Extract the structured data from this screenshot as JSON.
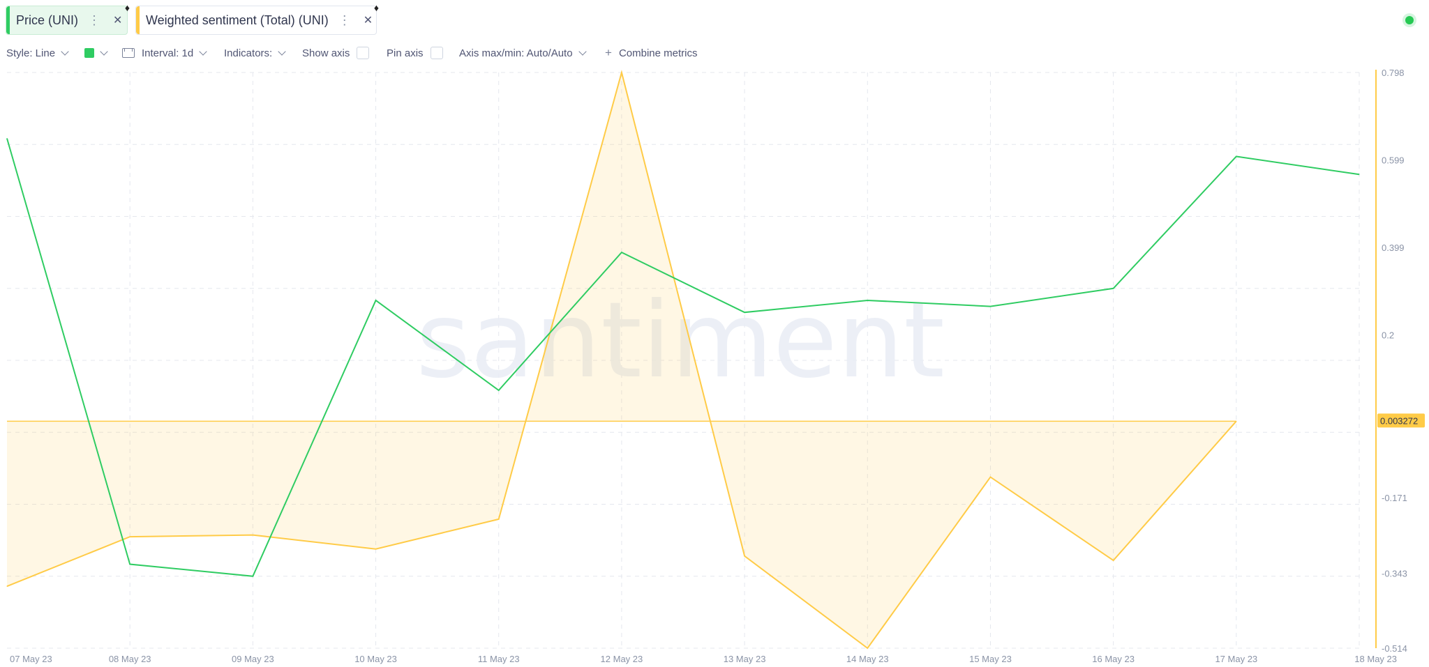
{
  "tabs": [
    {
      "label": "Price (UNI)",
      "color": "#2fcc62",
      "icon": "ethereum-icon"
    },
    {
      "label": "Weighted sentiment (Total) (UNI)",
      "color": "#ffcb47",
      "icon": "ethereum-icon"
    }
  ],
  "toolbar": {
    "style_label": "Style: Line",
    "interval_label": "Interval: 1d",
    "indicators_label": "Indicators:",
    "show_axis_label": "Show axis",
    "pin_axis_label": "Pin axis",
    "axis_minmax_label": "Axis max/min: Auto/Auto",
    "combine_label": "Combine metrics"
  },
  "watermark": "santiment",
  "chart_data": {
    "type": "line",
    "categories": [
      "07 May 23",
      "08 May 23",
      "09 May 23",
      "10 May 23",
      "11 May 23",
      "12 May 23",
      "13 May 23",
      "14 May 23",
      "15 May 23",
      "16 May 23",
      "17 May 23",
      "18 May 23"
    ],
    "series": [
      {
        "name": "Price (UNI)",
        "color": "#2fcc62",
        "axis": "hidden",
        "values": [
          5.63,
          4.92,
          4.9,
          5.36,
          5.21,
          5.44,
          5.34,
          5.36,
          5.35,
          5.38,
          5.6,
          5.57
        ]
      },
      {
        "name": "Weighted sentiment (Total) (UNI)",
        "color": "#ffcb47",
        "axis": "right",
        "area": true,
        "values": [
          -0.373,
          -0.26,
          -0.256,
          -0.288,
          -0.22,
          0.798,
          -0.304,
          -0.514,
          -0.124,
          -0.314,
          0.003272,
          null
        ]
      }
    ],
    "y_right": {
      "ticks": [
        "0.798",
        "0.599",
        "0.399",
        "0.2",
        "-0.171",
        "-0.343",
        "-0.514"
      ],
      "range": [
        -0.514,
        0.798
      ]
    },
    "latest_value_label": "0.003272",
    "grid": true
  }
}
